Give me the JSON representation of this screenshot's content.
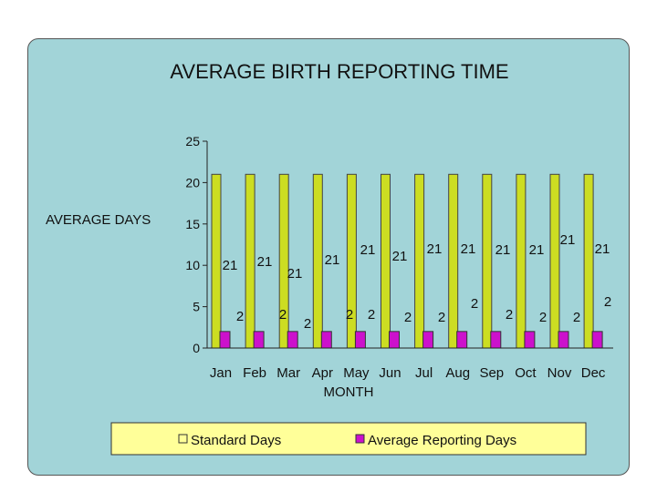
{
  "chart_data": {
    "type": "bar",
    "title": "AVERAGE BIRTH REPORTING TIME",
    "xlabel": "MONTH",
    "ylabel": "AVERAGE DAYS",
    "categories": [
      "Jan",
      "Feb",
      "Mar",
      "Apr",
      "May",
      "Jun",
      "Jul",
      "Aug",
      "Sep",
      "Oct",
      "Nov",
      "Dec"
    ],
    "ylim": [
      0,
      25
    ],
    "yticks": [
      "0",
      "5",
      "10",
      "15",
      "20",
      "25"
    ],
    "grid": false,
    "legend_position": "bottom",
    "series": [
      {
        "name": "Standard Days",
        "values": [
          21,
          21,
          21,
          21,
          21,
          21,
          21,
          21,
          21,
          21,
          21,
          21
        ],
        "data_labels": [
          "21",
          "21",
          "21",
          "21",
          "21",
          "21",
          "21",
          "21",
          "21",
          "21",
          "21",
          "21"
        ],
        "color": "#ccdd22"
      },
      {
        "name": "Average Reporting Days",
        "values": [
          2,
          2,
          2,
          2,
          2,
          2,
          2,
          2,
          2,
          2,
          2,
          2
        ],
        "data_labels": [
          "2",
          "2",
          "2",
          "2",
          "2",
          "2",
          "2",
          "2",
          "2",
          "2",
          "2",
          "2"
        ],
        "color": "#cc11cc"
      }
    ]
  }
}
